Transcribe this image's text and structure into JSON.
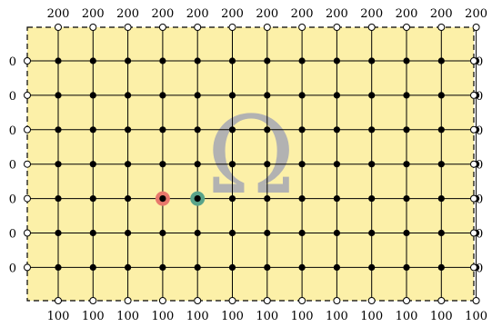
{
  "omega_symbol": "Ω",
  "top_boundary_value": "200",
  "bottom_boundary_value": "100",
  "left_boundary_value": "0",
  "right_boundary_value": "",
  "grid": {
    "columns": 13,
    "rows": 7
  },
  "highlighted_nodes": [
    {
      "id": "red-node",
      "column": 4,
      "row": 5,
      "color": "#e8786c"
    },
    {
      "id": "green-node",
      "column": 5,
      "row": 5,
      "color": "#5aa48a"
    }
  ],
  "colors": {
    "domain_fill": "#fcf0a8",
    "lines": "#000000",
    "interior_node": "#000000",
    "boundary_node_fill": "#ffffff",
    "omega": "#b2b2b2"
  }
}
